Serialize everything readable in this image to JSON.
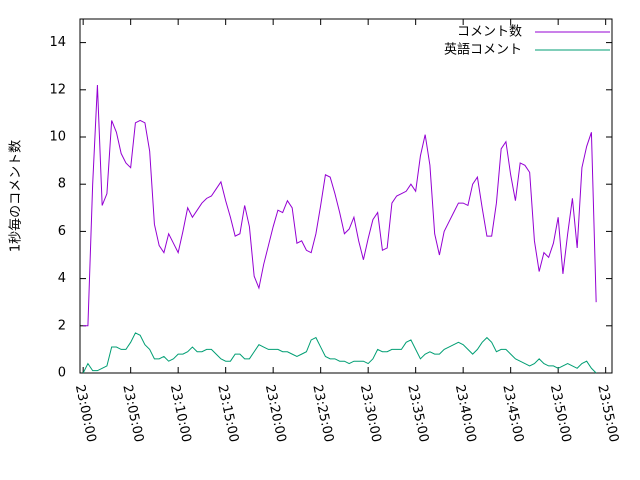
{
  "chart_data": {
    "type": "line",
    "y_label": "1秒毎のコメント数",
    "x": [
      "23:00:00",
      "23:00:30",
      "23:01:00",
      "23:01:30",
      "23:02:00",
      "23:02:30",
      "23:03:00",
      "23:03:30",
      "23:04:00",
      "23:04:30",
      "23:05:00",
      "23:05:30",
      "23:06:00",
      "23:06:30",
      "23:07:00",
      "23:07:30",
      "23:08:00",
      "23:08:30",
      "23:09:00",
      "23:09:30",
      "23:10:00",
      "23:10:30",
      "23:11:00",
      "23:11:30",
      "23:12:00",
      "23:12:30",
      "23:13:00",
      "23:13:30",
      "23:14:00",
      "23:14:30",
      "23:15:00",
      "23:15:30",
      "23:16:00",
      "23:16:30",
      "23:17:00",
      "23:17:30",
      "23:18:00",
      "23:18:30",
      "23:19:00",
      "23:19:30",
      "23:20:00",
      "23:20:30",
      "23:21:00",
      "23:21:30",
      "23:22:00",
      "23:22:30",
      "23:23:00",
      "23:23:30",
      "23:24:00",
      "23:24:30",
      "23:25:00",
      "23:25:30",
      "23:26:00",
      "23:26:30",
      "23:27:00",
      "23:27:30",
      "23:28:00",
      "23:28:30",
      "23:29:00",
      "23:29:30",
      "23:30:00",
      "23:30:30",
      "23:31:00",
      "23:31:30",
      "23:32:00",
      "23:32:30",
      "23:33:00",
      "23:33:30",
      "23:34:00",
      "23:34:30",
      "23:35:00",
      "23:35:30",
      "23:36:00",
      "23:36:30",
      "23:37:00",
      "23:37:30",
      "23:38:00",
      "23:38:30",
      "23:39:00",
      "23:39:30",
      "23:40:00",
      "23:40:30",
      "23:41:00",
      "23:41:30",
      "23:42:00",
      "23:42:30",
      "23:43:00",
      "23:43:30",
      "23:44:00",
      "23:44:30",
      "23:45:00",
      "23:45:30",
      "23:46:00",
      "23:46:30",
      "23:47:00",
      "23:47:30",
      "23:48:00",
      "23:48:30",
      "23:49:00",
      "23:49:30",
      "23:50:00",
      "23:50:30",
      "23:51:00",
      "23:51:30",
      "23:52:00",
      "23:52:30",
      "23:53:00",
      "23:53:30",
      "23:54:00"
    ],
    "series": [
      {
        "name": "コメント数",
        "color": "#9400d3",
        "values": [
          2.0,
          2.0,
          8.0,
          12.2,
          7.1,
          7.6,
          10.7,
          10.2,
          9.3,
          8.9,
          8.7,
          10.6,
          10.7,
          10.6,
          9.4,
          6.3,
          5.4,
          5.1,
          5.9,
          5.5,
          5.1,
          6.0,
          7.0,
          6.6,
          6.9,
          7.2,
          7.4,
          7.5,
          7.8,
          8.1,
          7.3,
          6.6,
          5.8,
          5.9,
          7.1,
          6.2,
          4.1,
          3.6,
          4.6,
          5.4,
          6.2,
          6.9,
          6.8,
          7.3,
          7.0,
          5.5,
          5.6,
          5.2,
          5.1,
          5.9,
          7.1,
          8.4,
          8.3,
          7.6,
          6.8,
          5.9,
          6.1,
          6.6,
          5.6,
          4.8,
          5.7,
          6.5,
          6.8,
          5.2,
          5.3,
          7.2,
          7.5,
          7.6,
          7.7,
          8.0,
          7.7,
          9.2,
          10.1,
          8.8,
          5.9,
          5.0,
          6.0,
          6.4,
          6.8,
          7.2,
          7.2,
          7.1,
          8.0,
          8.3,
          7.0,
          5.8,
          5.8,
          7.2,
          9.5,
          9.8,
          8.4,
          7.3,
          8.9,
          8.8,
          8.5,
          5.6,
          4.3,
          5.1,
          4.9,
          5.5,
          6.6,
          4.2,
          5.9,
          7.4,
          5.3,
          8.7,
          9.6,
          10.2,
          3.0
        ]
      },
      {
        "name": "英語コメント",
        "color": "#009e73",
        "values": [
          0.0,
          0.4,
          0.1,
          0.1,
          0.2,
          0.3,
          1.1,
          1.1,
          1.0,
          1.0,
          1.3,
          1.7,
          1.6,
          1.2,
          1.0,
          0.6,
          0.6,
          0.7,
          0.5,
          0.6,
          0.8,
          0.8,
          0.9,
          1.1,
          0.9,
          0.9,
          1.0,
          1.0,
          0.8,
          0.6,
          0.5,
          0.5,
          0.8,
          0.8,
          0.6,
          0.6,
          0.9,
          1.2,
          1.1,
          1.0,
          1.0,
          1.0,
          0.9,
          0.9,
          0.8,
          0.7,
          0.8,
          0.9,
          1.4,
          1.5,
          1.1,
          0.7,
          0.6,
          0.6,
          0.5,
          0.5,
          0.4,
          0.5,
          0.5,
          0.5,
          0.4,
          0.6,
          1.0,
          0.9,
          0.9,
          1.0,
          1.0,
          1.0,
          1.3,
          1.4,
          1.0,
          0.6,
          0.8,
          0.9,
          0.8,
          0.8,
          1.0,
          1.1,
          1.2,
          1.3,
          1.2,
          1.0,
          0.8,
          1.0,
          1.3,
          1.5,
          1.3,
          0.9,
          1.0,
          1.0,
          0.8,
          0.6,
          0.5,
          0.4,
          0.3,
          0.4,
          0.6,
          0.4,
          0.3,
          0.3,
          0.2,
          0.3,
          0.4,
          0.3,
          0.2,
          0.4,
          0.5,
          0.2,
          0.0
        ]
      }
    ],
    "xlim": [
      "22:59:40",
      "23:55:40"
    ],
    "xticks": [
      "23:00:00",
      "23:05:00",
      "23:10:00",
      "23:15:00",
      "23:20:00",
      "23:25:00",
      "23:30:00",
      "23:35:00",
      "23:40:00",
      "23:45:00",
      "23:50:00",
      "23:55:00"
    ],
    "ylim": [
      0,
      15
    ],
    "yticks": [
      0,
      2,
      4,
      6,
      8,
      10,
      12,
      14
    ],
    "legend": "top-right"
  }
}
